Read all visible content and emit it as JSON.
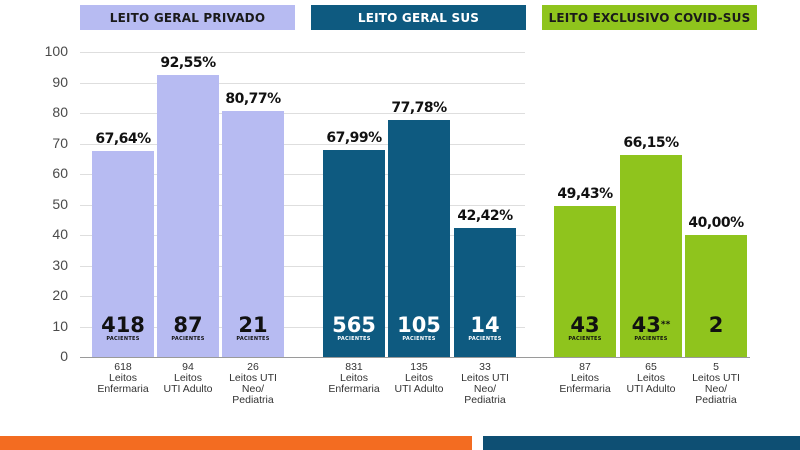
{
  "colors": {
    "privado_header": "#b7bbf2",
    "privado_bar": "#b7bbf2",
    "sus_header": "#0e5a80",
    "sus_bar": "#0e5a80",
    "covid_header": "#8fc41d",
    "covid_bar": "#8fc41d",
    "bottom_left": "#f36c21",
    "bottom_right": "#0e4f73"
  },
  "chart_data": {
    "type": "bar",
    "ylim": [
      0,
      100
    ],
    "yticks": [
      "100",
      "90",
      "80",
      "70",
      "60",
      "50",
      "40",
      "30",
      "20",
      "10",
      "0"
    ],
    "grid": true,
    "groups": [
      {
        "title": "LEITO GERAL PRIVADO",
        "bars": [
          {
            "value": 67.64,
            "label": "67,64%",
            "patients": "418",
            "patients_label": "PACIENTES",
            "count": "618",
            "category": [
              "Leitos",
              "Enfermaria"
            ]
          },
          {
            "value": 92.55,
            "label": "92,55%",
            "patients": "87",
            "patients_label": "PACIENTES",
            "count": "94",
            "category": [
              "Leitos",
              "UTI Adulto"
            ]
          },
          {
            "value": 80.77,
            "label": "80,77%",
            "patients": "21",
            "patients_label": "PACIENTES",
            "count": "26",
            "category": [
              "Leitos UTI",
              "Neo/",
              "Pediatria"
            ]
          }
        ]
      },
      {
        "title": "LEITO GERAL SUS",
        "bars": [
          {
            "value": 67.99,
            "label": "67,99%",
            "patients": "565",
            "patients_label": "PACIENTES",
            "count": "831",
            "category": [
              "Leitos",
              "Enfermaria"
            ]
          },
          {
            "value": 77.78,
            "label": "77,78%",
            "patients": "105",
            "patients_label": "PACIENTES",
            "count": "135",
            "category": [
              "Leitos",
              "UTI Adulto"
            ]
          },
          {
            "value": 42.42,
            "label": "42,42%",
            "patients": "14",
            "patients_label": "PACIENTES",
            "count": "33",
            "category": [
              "Leitos UTI",
              "Neo/",
              "Pediatria"
            ]
          }
        ]
      },
      {
        "title": "LEITO EXCLUSIVO COVID-SUS",
        "bars": [
          {
            "value": 49.43,
            "label": "49,43%",
            "patients": "43",
            "patients_label": "PACIENTES",
            "count": "87",
            "category": [
              "Leitos",
              "Enfermaria"
            ]
          },
          {
            "value": 66.15,
            "label": "66,15%",
            "patients": "43",
            "patients_sup": "**",
            "patients_label": "PACIENTES",
            "count": "65",
            "category": [
              "Leitos",
              "UTI Adulto"
            ]
          },
          {
            "value": 40.0,
            "label": "40,00%",
            "patients": "2",
            "patients_label": "",
            "count": "5",
            "category": [
              "Leitos UTI",
              "Neo/",
              "Pediatria"
            ]
          }
        ]
      }
    ]
  }
}
